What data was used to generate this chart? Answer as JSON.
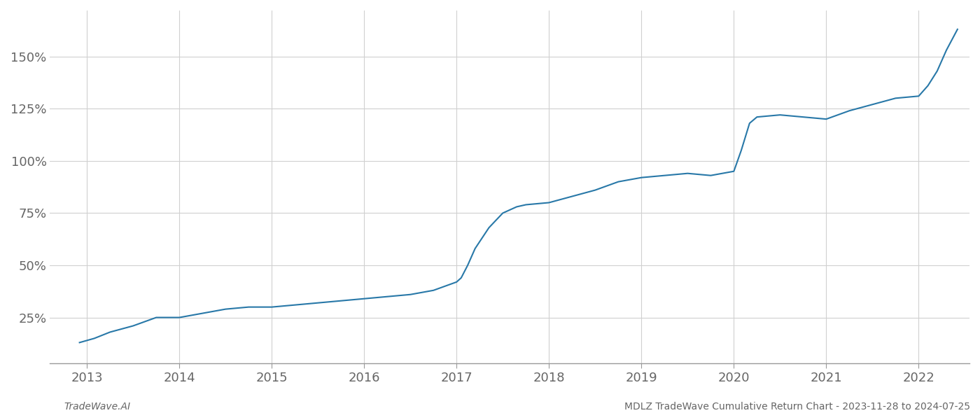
{
  "footer_left": "TradeWave.AI",
  "footer_right": "MDLZ TradeWave Cumulative Return Chart - 2023-11-28 to 2024-07-25",
  "line_color": "#2878a8",
  "background_color": "#ffffff",
  "grid_color": "#d0d0d0",
  "x_years": [
    2013,
    2014,
    2015,
    2016,
    2017,
    2018,
    2019,
    2020,
    2021,
    2022
  ],
  "y_ticks": [
    25,
    50,
    75,
    100,
    125,
    150
  ],
  "xlim_start": 2012.6,
  "xlim_end": 2022.55,
  "ylim_bottom": 3,
  "ylim_top": 172,
  "data_x": [
    2012.92,
    2013.08,
    2013.25,
    2013.5,
    2013.75,
    2014.0,
    2014.25,
    2014.5,
    2014.75,
    2015.0,
    2015.25,
    2015.5,
    2015.75,
    2016.0,
    2016.25,
    2016.5,
    2016.75,
    2017.0,
    2017.05,
    2017.12,
    2017.2,
    2017.35,
    2017.5,
    2017.65,
    2017.75,
    2018.0,
    2018.25,
    2018.5,
    2018.75,
    2019.0,
    2019.25,
    2019.5,
    2019.75,
    2020.0,
    2020.08,
    2020.17,
    2020.25,
    2020.5,
    2020.75,
    2021.0,
    2021.25,
    2021.5,
    2021.75,
    2022.0,
    2022.1,
    2022.2,
    2022.3,
    2022.42
  ],
  "data_y": [
    13,
    15,
    18,
    21,
    25,
    25,
    27,
    29,
    30,
    30,
    31,
    32,
    33,
    34,
    35,
    36,
    38,
    42,
    44,
    50,
    58,
    68,
    75,
    78,
    79,
    80,
    83,
    86,
    90,
    92,
    93,
    94,
    93,
    95,
    105,
    118,
    121,
    122,
    121,
    120,
    124,
    127,
    130,
    131,
    136,
    143,
    153,
    163
  ],
  "line_width": 1.5,
  "font_color": "#666666",
  "footer_fontsize": 10,
  "tick_fontsize": 13,
  "spine_color": "#999999"
}
